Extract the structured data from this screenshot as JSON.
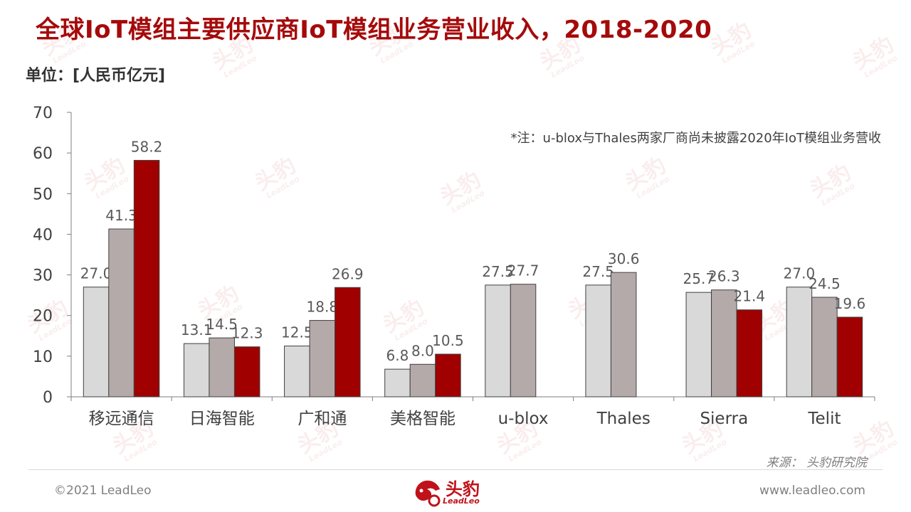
{
  "header": {
    "title": "全球IoT模组主要供应商IoT模组业务营业收入，2018-2020",
    "unit": "单位：[人民币亿元]"
  },
  "footer": {
    "source": "来源：  头豹研究院",
    "copyright": "©2021 LeadLeo",
    "website": "www.leadleo.com",
    "logo_cn": "头豹",
    "logo_en": "LeadLeo"
  },
  "watermark": {
    "cn": "头豹",
    "en": "LeadLeo"
  },
  "colors": {
    "title": "#a50a0a",
    "series_2018": "#d9d9d9",
    "series_2019": "#b5aaaa",
    "series_2020": "#a00000",
    "axis": "#7f7f7f"
  },
  "chart_data": {
    "type": "bar",
    "categories": [
      "移远通信",
      "日海智能",
      "广和通",
      "美格智能",
      "u-blox",
      "Thales",
      "Sierra",
      "Telit"
    ],
    "series": [
      {
        "values": [
          27.0,
          13.1,
          12.5,
          6.8,
          27.5,
          27.5,
          25.7,
          27.0
        ],
        "color": "#d9d9d9"
      },
      {
        "values": [
          41.3,
          14.5,
          18.8,
          8.0,
          27.7,
          30.6,
          26.3,
          24.5
        ],
        "color": "#b5aaaa"
      },
      {
        "values": [
          58.2,
          12.3,
          26.9,
          10.5,
          null,
          null,
          21.4,
          19.6
        ],
        "color": "#a00000"
      }
    ],
    "ylim": [
      0,
      70
    ],
    "yticks": [
      "0",
      "10",
      "20",
      "30",
      "40",
      "50",
      "60",
      "70"
    ],
    "annotation": "*注：u-blox与Thales两家厂商尚未披露2020年IoT模组业务营收",
    "legend": "none",
    "grid": false
  }
}
